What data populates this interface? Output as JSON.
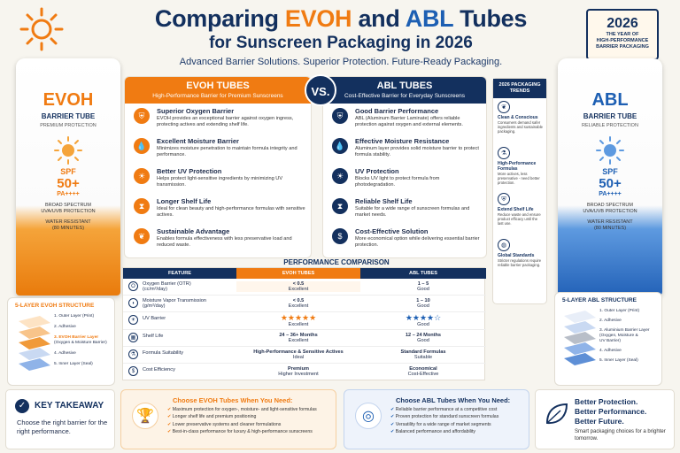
{
  "header": {
    "title_prefix": "Comparing ",
    "title_evoh": "EVOH",
    "title_mid": " and ",
    "title_abl": "ABL",
    "title_suffix": " Tubes",
    "subtitle": "for Sunscreen Packaging in 2026",
    "tagline": "Advanced Barrier Solutions. Superior Protection. Future-Ready Packaging."
  },
  "badge": {
    "year": "2026",
    "line1": "THE YEAR OF",
    "line2": "HIGH-PERFORMANCE",
    "line3": "BARRIER PACKAGING"
  },
  "colors": {
    "navy": "#13305e",
    "orange": "#f07b12",
    "blue": "#1d5fb3"
  },
  "evoh_tube": {
    "brand": "EVOH",
    "type": "BARRIER TUBE",
    "tag": "PREMIUM PROTECTION",
    "spf": "SPF",
    "spf_value": "50+",
    "pa": "PA++++",
    "spectrum1": "BROAD SPECTRUM",
    "spectrum2": "UVA/UVB PROTECTION",
    "water1": "WATER RESISTANT",
    "water2": "(80 MINUTES)"
  },
  "abl_tube": {
    "brand": "ABL",
    "type": "BARRIER TUBE",
    "tag": "RELIABLE PROTECTION",
    "spf": "SPF",
    "spf_value": "50+",
    "pa": "PA++++",
    "spectrum1": "BROAD SPECTRUM",
    "spectrum2": "UVA/UVB PROTECTION",
    "water1": "WATER RESISTANT",
    "water2": "(80 MINUTES)"
  },
  "evoh_layers": {
    "title": "5-LAYER EVOH STRUCTURE",
    "items": [
      "1. Outer Layer (Print)",
      "2. Adhesive",
      "3. EVOH Barrier Layer",
      "(Oxygen & Moisture Barrier)",
      "4. Adhesive",
      "5. Inner Layer (Seal)"
    ]
  },
  "abl_layers": {
    "title": "5-LAYER ABL STRUCTURE",
    "items": [
      "1. Outer Layer (Print)",
      "2. Adhesive",
      "3. Aluminium Barrier Layer",
      "(Oxygen, Moisture &",
      "UV Barrier)",
      "4. Adhesive",
      "5. Inner Layer (Seal)"
    ]
  },
  "vs": "VS.",
  "evoh_panel": {
    "title": "EVOH TUBES",
    "subtitle": "High-Performance Barrier for Premium Sunscreens",
    "features": [
      {
        "icon": "shield-icon",
        "title": "Superior Oxygen Barrier",
        "desc": "EVOH provides an exceptional barrier against oxygen ingress, protecting actives and extending shelf life."
      },
      {
        "icon": "drop-icon",
        "title": "Excellent Moisture Barrier",
        "desc": "Minimizes moisture penetration to maintain formula integrity and performance."
      },
      {
        "icon": "sun-icon",
        "title": "Better UV Protection",
        "desc": "Helps protect light-sensitive ingredients by minimizing UV transmission."
      },
      {
        "icon": "hourglass-icon",
        "title": "Longer Shelf Life",
        "desc": "Ideal for clean beauty and high-performance formulas with sensitive actives."
      },
      {
        "icon": "leaf-icon",
        "title": "Sustainable Advantage",
        "desc": "Enables formula effectiveness with less preservative load and reduced waste."
      }
    ]
  },
  "abl_panel": {
    "title": "ABL TUBES",
    "subtitle": "Cost-Effective Barrier for Everyday Sunscreens",
    "features": [
      {
        "icon": "shield-icon",
        "title": "Good Barrier Performance",
        "desc": "ABL (Aluminum Barrier Laminate) offers reliable protection against oxygen and external elements."
      },
      {
        "icon": "drop-icon",
        "title": "Effective Moisture Resistance",
        "desc": "Aluminum layer provides solid moisture barrier to protect formula stability."
      },
      {
        "icon": "sun-icon",
        "title": "UV Protection",
        "desc": "Blocks UV light to protect formula from photodegradation."
      },
      {
        "icon": "hourglass-icon",
        "title": "Reliable Shelf Life",
        "desc": "Suitable for a wide range of sunscreen formulas and market needs."
      },
      {
        "icon": "dollar-icon",
        "title": "Cost-Effective Solution",
        "desc": "More economical option while delivering essential barrier protection."
      }
    ]
  },
  "trends": {
    "title1": "2026 PACKAGING",
    "title2": "TRENDS",
    "items": [
      {
        "icon": "leaf-icon",
        "title": "Clean & Conscious",
        "desc": "Consumers demand safer ingredients and sustainable packaging."
      },
      {
        "icon": "flask-icon",
        "title": "High-Performance Formulas",
        "desc": "More actives, less preservative - need better protection."
      },
      {
        "icon": "shield-icon",
        "title": "Extend Shelf Life",
        "desc": "Reduce waste and ensure product efficacy until the last use."
      },
      {
        "icon": "globe-icon",
        "title": "Global Standards",
        "desc": "Stricter regulations require reliable barrier packaging."
      }
    ]
  },
  "performance": {
    "title": "PERFORMANCE COMPARISON",
    "headers": [
      "FEATURE",
      "EVOH TUBES",
      "ABL TUBES"
    ],
    "rows": [
      {
        "feature": "Oxygen Barrier (OTR)",
        "unit": "(cc/m²/day)",
        "evoh": "< 0.5",
        "evoh_rating": "Excellent",
        "abl": "1 – 5",
        "abl_rating": "Good"
      },
      {
        "feature": "Moisture Vapor Transmission",
        "unit": "(g/m²/day)",
        "evoh": "< 0.5",
        "evoh_rating": "Excellent",
        "abl": "1 – 10",
        "abl_rating": "Good"
      },
      {
        "feature": "UV Barrier",
        "unit": "",
        "evoh": "★★★★★",
        "evoh_rating": "Excellent",
        "abl": "★★★★☆",
        "abl_rating": "Good"
      },
      {
        "feature": "Shelf Life",
        "unit": "",
        "evoh": "24 – 36+ Months",
        "evoh_rating": "Excellent",
        "abl": "12 – 24 Months",
        "abl_rating": "Good"
      },
      {
        "feature": "Formula Suitability",
        "unit": "",
        "evoh": "High-Performance & Sensitive Actives",
        "evoh_rating": "Ideal",
        "abl": "Standard Formulas",
        "abl_rating": "Suitable"
      },
      {
        "feature": "Cost Efficiency",
        "unit": "",
        "evoh": "Premium",
        "evoh_rating": "Higher Investment",
        "abl": "Economical",
        "abl_rating": "Cost-Effective"
      }
    ],
    "evoh_stars": 5,
    "abl_stars": 4
  },
  "takeaway": {
    "title": "KEY TAKEAWAY",
    "text": "Choose the right barrier for the right performance."
  },
  "choose_evoh": {
    "title": "Choose EVOH Tubes When You Need:",
    "items": [
      "Maximum protection for oxygen-, moisture- and light-sensitive formulas",
      "Longer shelf life and premium positioning",
      "Lower preservative systems and cleaner formulations",
      "Best-in-class performance for luxury & high-performance sunscreens"
    ]
  },
  "choose_abl": {
    "title": "Choose ABL Tubes When You Need:",
    "items": [
      "Reliable barrier performance at a competitive cost",
      "Proven protection for standard sunscreen formulas",
      "Versatility for a wide range of market segments",
      "Balanced performance and affordability"
    ]
  },
  "better": {
    "line1": "Better Protection.",
    "line2": "Better Performance.",
    "line3": "Better Future.",
    "text": "Smart packaging choices for a brighter tomorrow."
  }
}
